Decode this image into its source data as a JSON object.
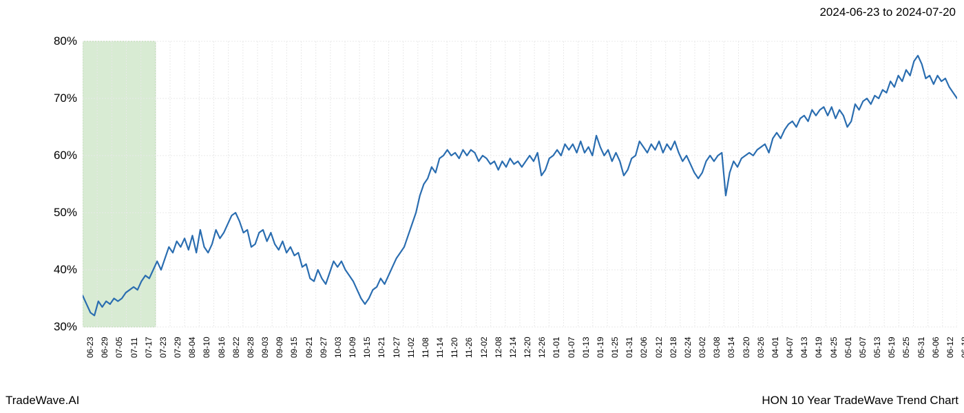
{
  "header": {
    "date_range": "2024-06-23 to 2024-07-20"
  },
  "footer": {
    "brand": "TradeWave.AI",
    "chart_title": "HON 10 Year TradeWave Trend Chart"
  },
  "chart": {
    "type": "line",
    "background_color": "#ffffff",
    "line_color": "#2a6db0",
    "line_width": 2.2,
    "grid_color": "#e8e8e8",
    "grid_dash": "2,2",
    "highlight_band": {
      "fill": "#d8ebd3",
      "stroke": "#b8d8ad",
      "x_start_index": 0,
      "x_end_index": 5
    },
    "ylim": [
      30,
      80
    ],
    "y_ticks": [
      30,
      40,
      50,
      60,
      70,
      80
    ],
    "y_tick_labels": [
      "30%",
      "40%",
      "50%",
      "60%",
      "70%",
      "80%"
    ],
    "x_tick_labels": [
      "06-23",
      "06-29",
      "07-05",
      "07-11",
      "07-17",
      "07-23",
      "07-29",
      "08-04",
      "08-10",
      "08-16",
      "08-22",
      "08-28",
      "09-03",
      "09-09",
      "09-15",
      "09-21",
      "09-27",
      "10-03",
      "10-09",
      "10-15",
      "10-21",
      "10-27",
      "11-02",
      "11-08",
      "11-14",
      "11-20",
      "11-26",
      "12-02",
      "12-08",
      "12-14",
      "12-20",
      "12-26",
      "01-01",
      "01-07",
      "01-13",
      "01-19",
      "01-25",
      "01-31",
      "02-06",
      "02-12",
      "02-18",
      "02-24",
      "03-02",
      "03-08",
      "03-14",
      "03-20",
      "03-26",
      "04-01",
      "04-07",
      "04-13",
      "04-19",
      "04-25",
      "05-01",
      "05-07",
      "05-13",
      "05-19",
      "05-25",
      "05-31",
      "06-06",
      "06-12",
      "06-18"
    ],
    "axis_font_size": 17,
    "tick_font_size": 12,
    "values": [
      35.5,
      34.0,
      32.5,
      32.0,
      34.5,
      33.5,
      34.5,
      34.0,
      35.0,
      34.5,
      35.0,
      36.0,
      36.5,
      37.0,
      36.5,
      38.0,
      39.0,
      38.5,
      40.0,
      41.5,
      40.0,
      42.0,
      44.0,
      43.0,
      45.0,
      44.0,
      45.5,
      43.5,
      46.0,
      43.0,
      47.0,
      44.0,
      43.0,
      44.5,
      47.0,
      45.5,
      46.5,
      48.0,
      49.5,
      50.0,
      48.5,
      46.5,
      47.0,
      44.0,
      44.5,
      46.5,
      47.0,
      45.0,
      46.5,
      44.5,
      43.5,
      45.0,
      43.0,
      44.0,
      42.5,
      43.0,
      40.5,
      41.0,
      38.5,
      38.0,
      40.0,
      38.5,
      37.5,
      39.5,
      41.5,
      40.5,
      41.5,
      40.0,
      39.0,
      38.0,
      36.5,
      35.0,
      34.0,
      35.0,
      36.5,
      37.0,
      38.5,
      37.5,
      39.0,
      40.5,
      42.0,
      43.0,
      44.0,
      46.0,
      48.0,
      50.0,
      53.0,
      55.0,
      56.0,
      58.0,
      57.0,
      59.5,
      60.0,
      61.0,
      60.0,
      60.5,
      59.5,
      61.0,
      60.0,
      61.0,
      60.5,
      59.0,
      60.0,
      59.5,
      58.5,
      59.0,
      57.5,
      59.0,
      58.0,
      59.5,
      58.5,
      59.0,
      58.0,
      59.0,
      60.0,
      59.0,
      60.5,
      56.5,
      57.5,
      59.5,
      60.0,
      61.0,
      60.0,
      62.0,
      61.0,
      62.0,
      60.5,
      62.5,
      60.5,
      61.5,
      60.0,
      63.5,
      61.5,
      60.0,
      61.0,
      59.0,
      60.5,
      59.0,
      56.5,
      57.5,
      59.5,
      60.0,
      62.5,
      61.5,
      60.5,
      62.0,
      61.0,
      62.5,
      60.5,
      62.0,
      61.0,
      62.5,
      60.5,
      59.0,
      60.0,
      58.5,
      57.0,
      56.0,
      57.0,
      59.0,
      60.0,
      59.0,
      60.0,
      60.5,
      53.0,
      57.0,
      59.0,
      58.0,
      59.5,
      60.0,
      60.5,
      60.0,
      61.0,
      61.5,
      62.0,
      60.5,
      63.0,
      64.0,
      63.0,
      64.5,
      65.5,
      66.0,
      65.0,
      66.5,
      67.0,
      66.0,
      68.0,
      67.0,
      68.0,
      68.5,
      67.0,
      68.5,
      66.5,
      68.0,
      67.0,
      65.0,
      66.0,
      69.0,
      68.0,
      69.5,
      70.0,
      69.0,
      70.5,
      70.0,
      71.5,
      71.0,
      73.0,
      72.0,
      74.0,
      73.0,
      75.0,
      74.0,
      76.5,
      77.5,
      76.0,
      73.5,
      74.0,
      72.5,
      74.0,
      73.0,
      73.5,
      72.0,
      71.0,
      70.0
    ]
  }
}
